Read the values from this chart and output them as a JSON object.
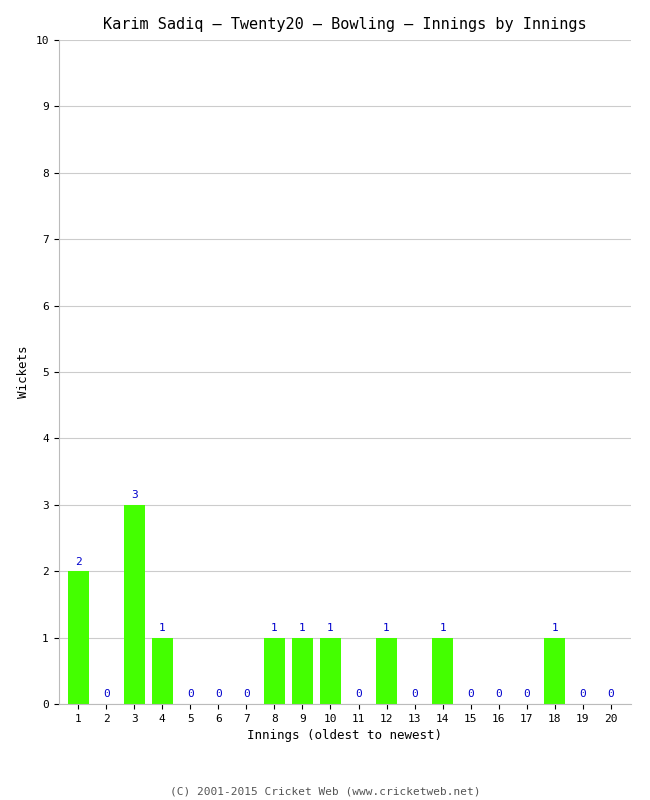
{
  "title": "Karim Sadiq – Twenty20 – Bowling – Innings by Innings",
  "xlabel": "Innings (oldest to newest)",
  "ylabel": "Wickets",
  "categories": [
    1,
    2,
    3,
    4,
    5,
    6,
    7,
    8,
    9,
    10,
    11,
    12,
    13,
    14,
    15,
    16,
    17,
    18,
    19,
    20
  ],
  "values": [
    2,
    0,
    3,
    1,
    0,
    0,
    0,
    1,
    1,
    1,
    0,
    1,
    0,
    1,
    0,
    0,
    0,
    1,
    0,
    0
  ],
  "bar_color": "#44ff00",
  "label_color": "#0000cc",
  "ylim": [
    0,
    10
  ],
  "yticks": [
    0,
    1,
    2,
    3,
    4,
    5,
    6,
    7,
    8,
    9,
    10
  ],
  "background_color": "#ffffff",
  "grid_color": "#cccccc",
  "footer": "(C) 2001-2015 Cricket Web (www.cricketweb.net)",
  "title_fontsize": 11,
  "label_fontsize": 9,
  "tick_fontsize": 8,
  "annotation_fontsize": 8
}
